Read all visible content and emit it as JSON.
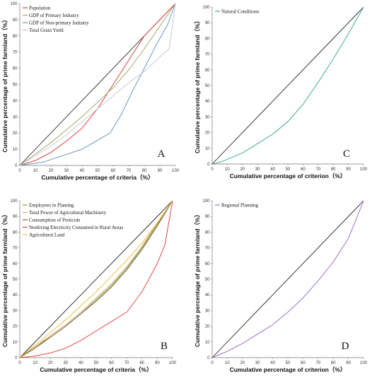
{
  "chart_data": [
    {
      "panel": "A",
      "type": "line",
      "title": "",
      "xlabel": "Cumulative percentage of criteria（%）",
      "ylabel": "Cumulative percentage of prime farmland（%）",
      "xlim": [
        0,
        100
      ],
      "ylim": [
        0,
        100
      ],
      "xticks": [
        0,
        10,
        20,
        30,
        40,
        50,
        60,
        70,
        80,
        90,
        100
      ],
      "yticks": [
        0,
        10,
        20,
        30,
        40,
        50,
        60,
        70,
        80,
        90,
        100
      ],
      "legend_position": "top-left",
      "diagonal": true,
      "series": [
        {
          "name": "Population",
          "color": "#d94040",
          "x": [
            0,
            10,
            20,
            30,
            40,
            50,
            60,
            70,
            80,
            90,
            100
          ],
          "y": [
            0,
            3,
            8,
            15,
            23,
            35,
            50,
            65,
            80,
            90,
            100
          ]
        },
        {
          "name": "GDP of Primary Industry",
          "color": "#a6a66a",
          "x": [
            0,
            10,
            20,
            30,
            40,
            50,
            60,
            70,
            80,
            90,
            100
          ],
          "y": [
            0,
            7,
            14,
            22,
            30,
            39,
            48,
            59,
            72,
            86,
            100
          ]
        },
        {
          "name": "GDP of Non-primary Industry",
          "color": "#6a96c8",
          "x": [
            0,
            15,
            40,
            58,
            65,
            72,
            80,
            88,
            95,
            100
          ],
          "y": [
            0,
            2,
            10,
            20,
            31,
            45,
            60,
            75,
            87,
            100
          ]
        },
        {
          "name": "Total Grain Yield",
          "color": "#c8c8d4",
          "x": [
            0,
            10,
            20,
            30,
            40,
            50,
            60,
            70,
            80,
            90,
            96,
            100
          ],
          "y": [
            0,
            6,
            12,
            19,
            27,
            35,
            43,
            51,
            58,
            67,
            72,
            100
          ]
        }
      ],
      "annotation": "A"
    },
    {
      "panel": "C",
      "type": "line",
      "title": "",
      "xlabel": "Cumulative percentage of criterion（%）",
      "ylabel": "Cumulative percentage of prime farmland（%）",
      "xlim": [
        0,
        100
      ],
      "ylim": [
        0,
        100
      ],
      "xticks": [
        0,
        10,
        20,
        30,
        40,
        50,
        60,
        70,
        80,
        90,
        100
      ],
      "yticks": [
        0,
        10,
        20,
        30,
        40,
        50,
        60,
        70,
        80,
        90,
        100
      ],
      "legend_position": "top-left",
      "diagonal": true,
      "series": [
        {
          "name": "Natural Conditions",
          "color": "#3fae8a",
          "x": [
            0,
            5,
            10,
            20,
            30,
            40,
            50,
            60,
            70,
            80,
            90,
            100
          ],
          "y": [
            0,
            1,
            3,
            7,
            13,
            19,
            27,
            38,
            52,
            67,
            83,
            100
          ]
        }
      ],
      "annotation": "C"
    },
    {
      "panel": "B",
      "type": "line",
      "title": "",
      "xlabel": "Cumulative percentage of criteria（%）",
      "ylabel": "Cumulative percentage of prime farmland（%）",
      "xlim": [
        0,
        100
      ],
      "ylim": [
        0,
        100
      ],
      "xticks": [
        0,
        10,
        20,
        30,
        40,
        50,
        60,
        70,
        80,
        90,
        100
      ],
      "yticks": [
        0,
        10,
        20,
        30,
        40,
        50,
        60,
        70,
        80,
        90,
        100
      ],
      "legend_position": "top-left",
      "diagonal": true,
      "series": [
        {
          "name": "Employees in Planting",
          "color": "#8ca040",
          "x": [
            0,
            10,
            20,
            30,
            40,
            50,
            60,
            70,
            80,
            90,
            100
          ],
          "y": [
            0,
            7,
            13,
            20,
            28,
            37,
            46,
            57,
            70,
            85,
            100
          ]
        },
        {
          "name": "Total Power of Agricultural Machinery",
          "color": "#c8b07a",
          "x": [
            0,
            10,
            20,
            30,
            40,
            50,
            60,
            70,
            80,
            90,
            100
          ],
          "y": [
            0,
            7,
            14,
            21,
            29,
            38,
            47,
            58,
            71,
            86,
            100
          ]
        },
        {
          "name": "Consumption of Pesticide",
          "color": "#7a5a2a",
          "x": [
            0,
            10,
            20,
            30,
            40,
            50,
            60,
            70,
            80,
            90,
            100
          ],
          "y": [
            0,
            6,
            13,
            20,
            28,
            36,
            45,
            56,
            69,
            84,
            100
          ]
        },
        {
          "name": "Nonliving Electricity Consumed in Rural Areas",
          "color": "#e04848",
          "x": [
            0,
            10,
            20,
            30,
            40,
            50,
            60,
            70,
            80,
            90,
            95,
            100
          ],
          "y": [
            0,
            1,
            3,
            6,
            11,
            17,
            23,
            29,
            42,
            60,
            72,
            100
          ]
        },
        {
          "name": "Agricultural Land",
          "color": "#f0c040",
          "x": [
            0,
            10,
            20,
            30,
            40,
            50,
            60,
            70,
            80,
            90,
            100
          ],
          "y": [
            0,
            8,
            16,
            24,
            33,
            42,
            52,
            62,
            73,
            86,
            100
          ]
        }
      ],
      "annotation": "B"
    },
    {
      "panel": "D",
      "type": "line",
      "title": "",
      "xlabel": "Cumulative percentage of criterion（%）",
      "ylabel": "Cumulative percentage of prime farmland（%）",
      "xlim": [
        0,
        100
      ],
      "ylim": [
        0,
        100
      ],
      "xticks": [
        0,
        10,
        20,
        30,
        40,
        50,
        60,
        70,
        80,
        90,
        100
      ],
      "yticks": [
        0,
        10,
        20,
        30,
        40,
        50,
        60,
        70,
        80,
        90,
        100
      ],
      "legend_position": "top-left",
      "diagonal": true,
      "series": [
        {
          "name": "Regional Planning",
          "color": "#a070c8",
          "x": [
            0,
            10,
            20,
            30,
            40,
            50,
            60,
            70,
            80,
            90,
            100
          ],
          "y": [
            0,
            4,
            9,
            15,
            21,
            29,
            38,
            49,
            61,
            76,
            100
          ]
        }
      ],
      "annotation": "D"
    }
  ]
}
